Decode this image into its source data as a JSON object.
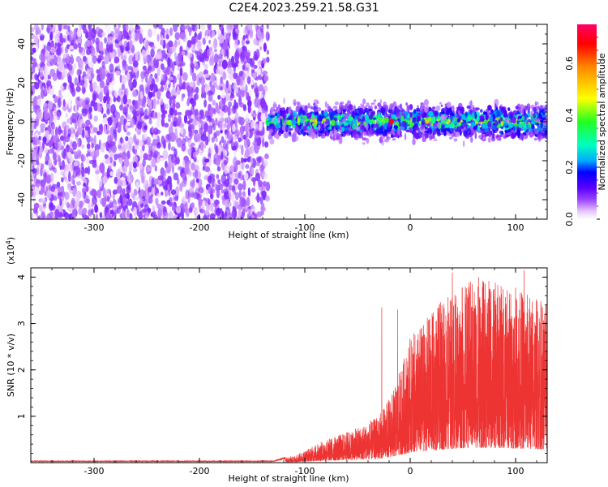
{
  "figure_title": "C2E4.2023.259.21.58.G31",
  "chart_data": [
    {
      "type": "heatmap",
      "xlabel": "Height of straight line (km)",
      "ylabel": "Frequency (Hz)",
      "xlim": [
        -360,
        130
      ],
      "ylim": [
        -50,
        50
      ],
      "x_ticks": [
        -300,
        -200,
        -100,
        0,
        100
      ],
      "y_ticks": [
        -40,
        -20,
        0,
        20,
        40
      ],
      "colorbar": {
        "label": "Normalized spectral amplitude",
        "range": [
          0,
          0.75
        ],
        "ticks": [
          0.0,
          0.2,
          0.4,
          0.6
        ],
        "colors": [
          "#ffffff",
          "#e8c8ff",
          "#9a44ff",
          "#5a00ff",
          "#0000ff",
          "#00aaff",
          "#00ffc0",
          "#22ff22",
          "#ffff00",
          "#ff8800",
          "#ff0000",
          "#ff0066"
        ]
      },
      "regions": [
        {
          "x_range": [
            -360,
            -135
          ],
          "y_range": [
            -50,
            50
          ],
          "amplitude_range": [
            0.0,
            0.1
          ],
          "pattern": "broadband noise"
        },
        {
          "x_range": [
            -135,
            130
          ],
          "y_center": 0,
          "y_halfwidth": 12,
          "amplitude_range": [
            0.05,
            0.7
          ],
          "pattern": "narrow band centered near 0 Hz"
        },
        {
          "x_range": [
            -135,
            130
          ],
          "y_range": [
            -50,
            50
          ],
          "amplitude_range": [
            0.0,
            0.0
          ],
          "pattern": "empty outside band"
        }
      ],
      "peak": {
        "x": -18,
        "y": 0,
        "amplitude": 0.7
      }
    },
    {
      "type": "line",
      "xlabel": "Height of straight line (km)",
      "ylabel": "SNR (10 * v/v)",
      "y_scale_label": "(x10",
      "y_scale_exp": "4",
      "y_scale_close": ")",
      "xlim": [
        -360,
        130
      ],
      "ylim": [
        0,
        4.2
      ],
      "x_ticks": [
        -300,
        -200,
        -100,
        0,
        100
      ],
      "y_ticks": [
        1,
        2,
        3,
        4
      ],
      "color": "#ee3333",
      "envelope": [
        {
          "x": -360,
          "y": 0.03
        },
        {
          "x": -130,
          "y": 0.03
        },
        {
          "x": -110,
          "y": 0.15
        },
        {
          "x": -80,
          "y": 0.5
        },
        {
          "x": -50,
          "y": 0.75
        },
        {
          "x": -30,
          "y": 1.0
        },
        {
          "x": -15,
          "y": 1.6
        },
        {
          "x": 0,
          "y": 2.7
        },
        {
          "x": 30,
          "y": 3.5
        },
        {
          "x": 60,
          "y": 4.0
        },
        {
          "x": 100,
          "y": 3.8
        },
        {
          "x": 130,
          "y": 3.5
        }
      ],
      "spikes": [
        {
          "x": -27,
          "y": 3.35
        },
        {
          "x": -12,
          "y": 3.3
        },
        {
          "x": 40,
          "y": 4.1
        },
        {
          "x": 65,
          "y": 4.0
        },
        {
          "x": 108,
          "y": 4.15
        }
      ]
    }
  ]
}
